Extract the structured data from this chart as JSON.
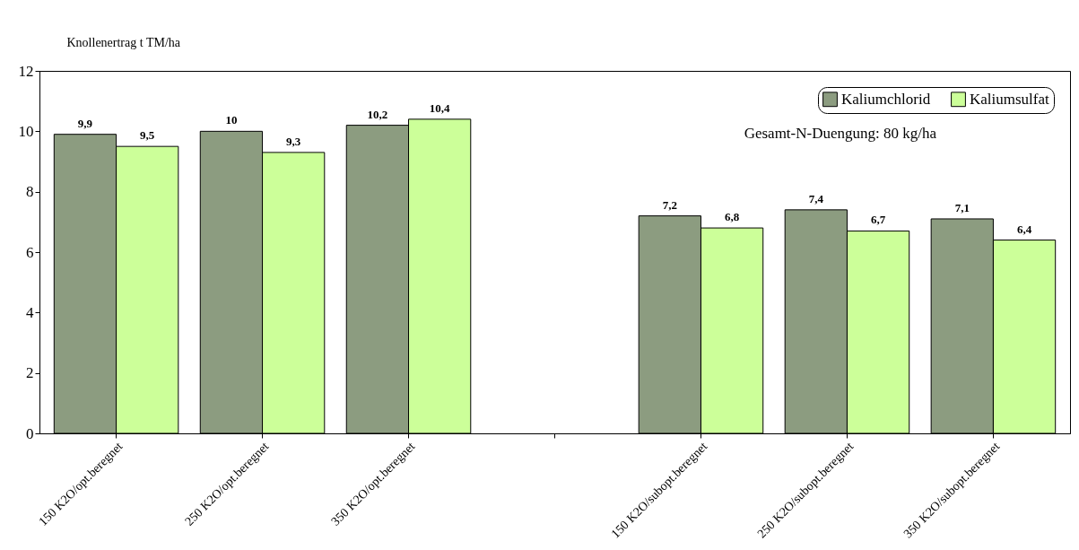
{
  "chart_data": {
    "type": "bar",
    "ylabel": "Knollenertrag t TM/ha",
    "categories": [
      "150 K2O/opt.beregnet",
      "250 K2O/opt.beregnet",
      "350 K2O/opt.beregnet",
      null,
      "150 K2O/subopt.beregnet",
      "250 K2O/subopt.beregnet",
      "350 K2O/subopt.beregnet"
    ],
    "series": [
      {
        "name": "Kaliumchlorid",
        "color": "#8c9c80",
        "values": [
          9.9,
          10,
          10.2,
          null,
          7.2,
          7.4,
          7.1
        ],
        "value_labels": [
          "9,9",
          "10",
          "10,2",
          null,
          "7,2",
          "7,4",
          "7,1"
        ]
      },
      {
        "name": "Kaliumsulfat",
        "color": "#ccff99",
        "values": [
          9.5,
          9.3,
          10.4,
          null,
          6.8,
          6.7,
          6.4
        ],
        "value_labels": [
          "9,5",
          "9,3",
          "10,4",
          null,
          "6,8",
          "6,7",
          "6,4"
        ]
      }
    ],
    "ylim": [
      0,
      12
    ],
    "yticks": [
      0,
      2,
      4,
      6,
      8,
      10,
      12
    ],
    "grid": false,
    "legend": "top right",
    "annotations": [
      "Gesamt-N-Duengung: 80 kg/ha"
    ]
  }
}
